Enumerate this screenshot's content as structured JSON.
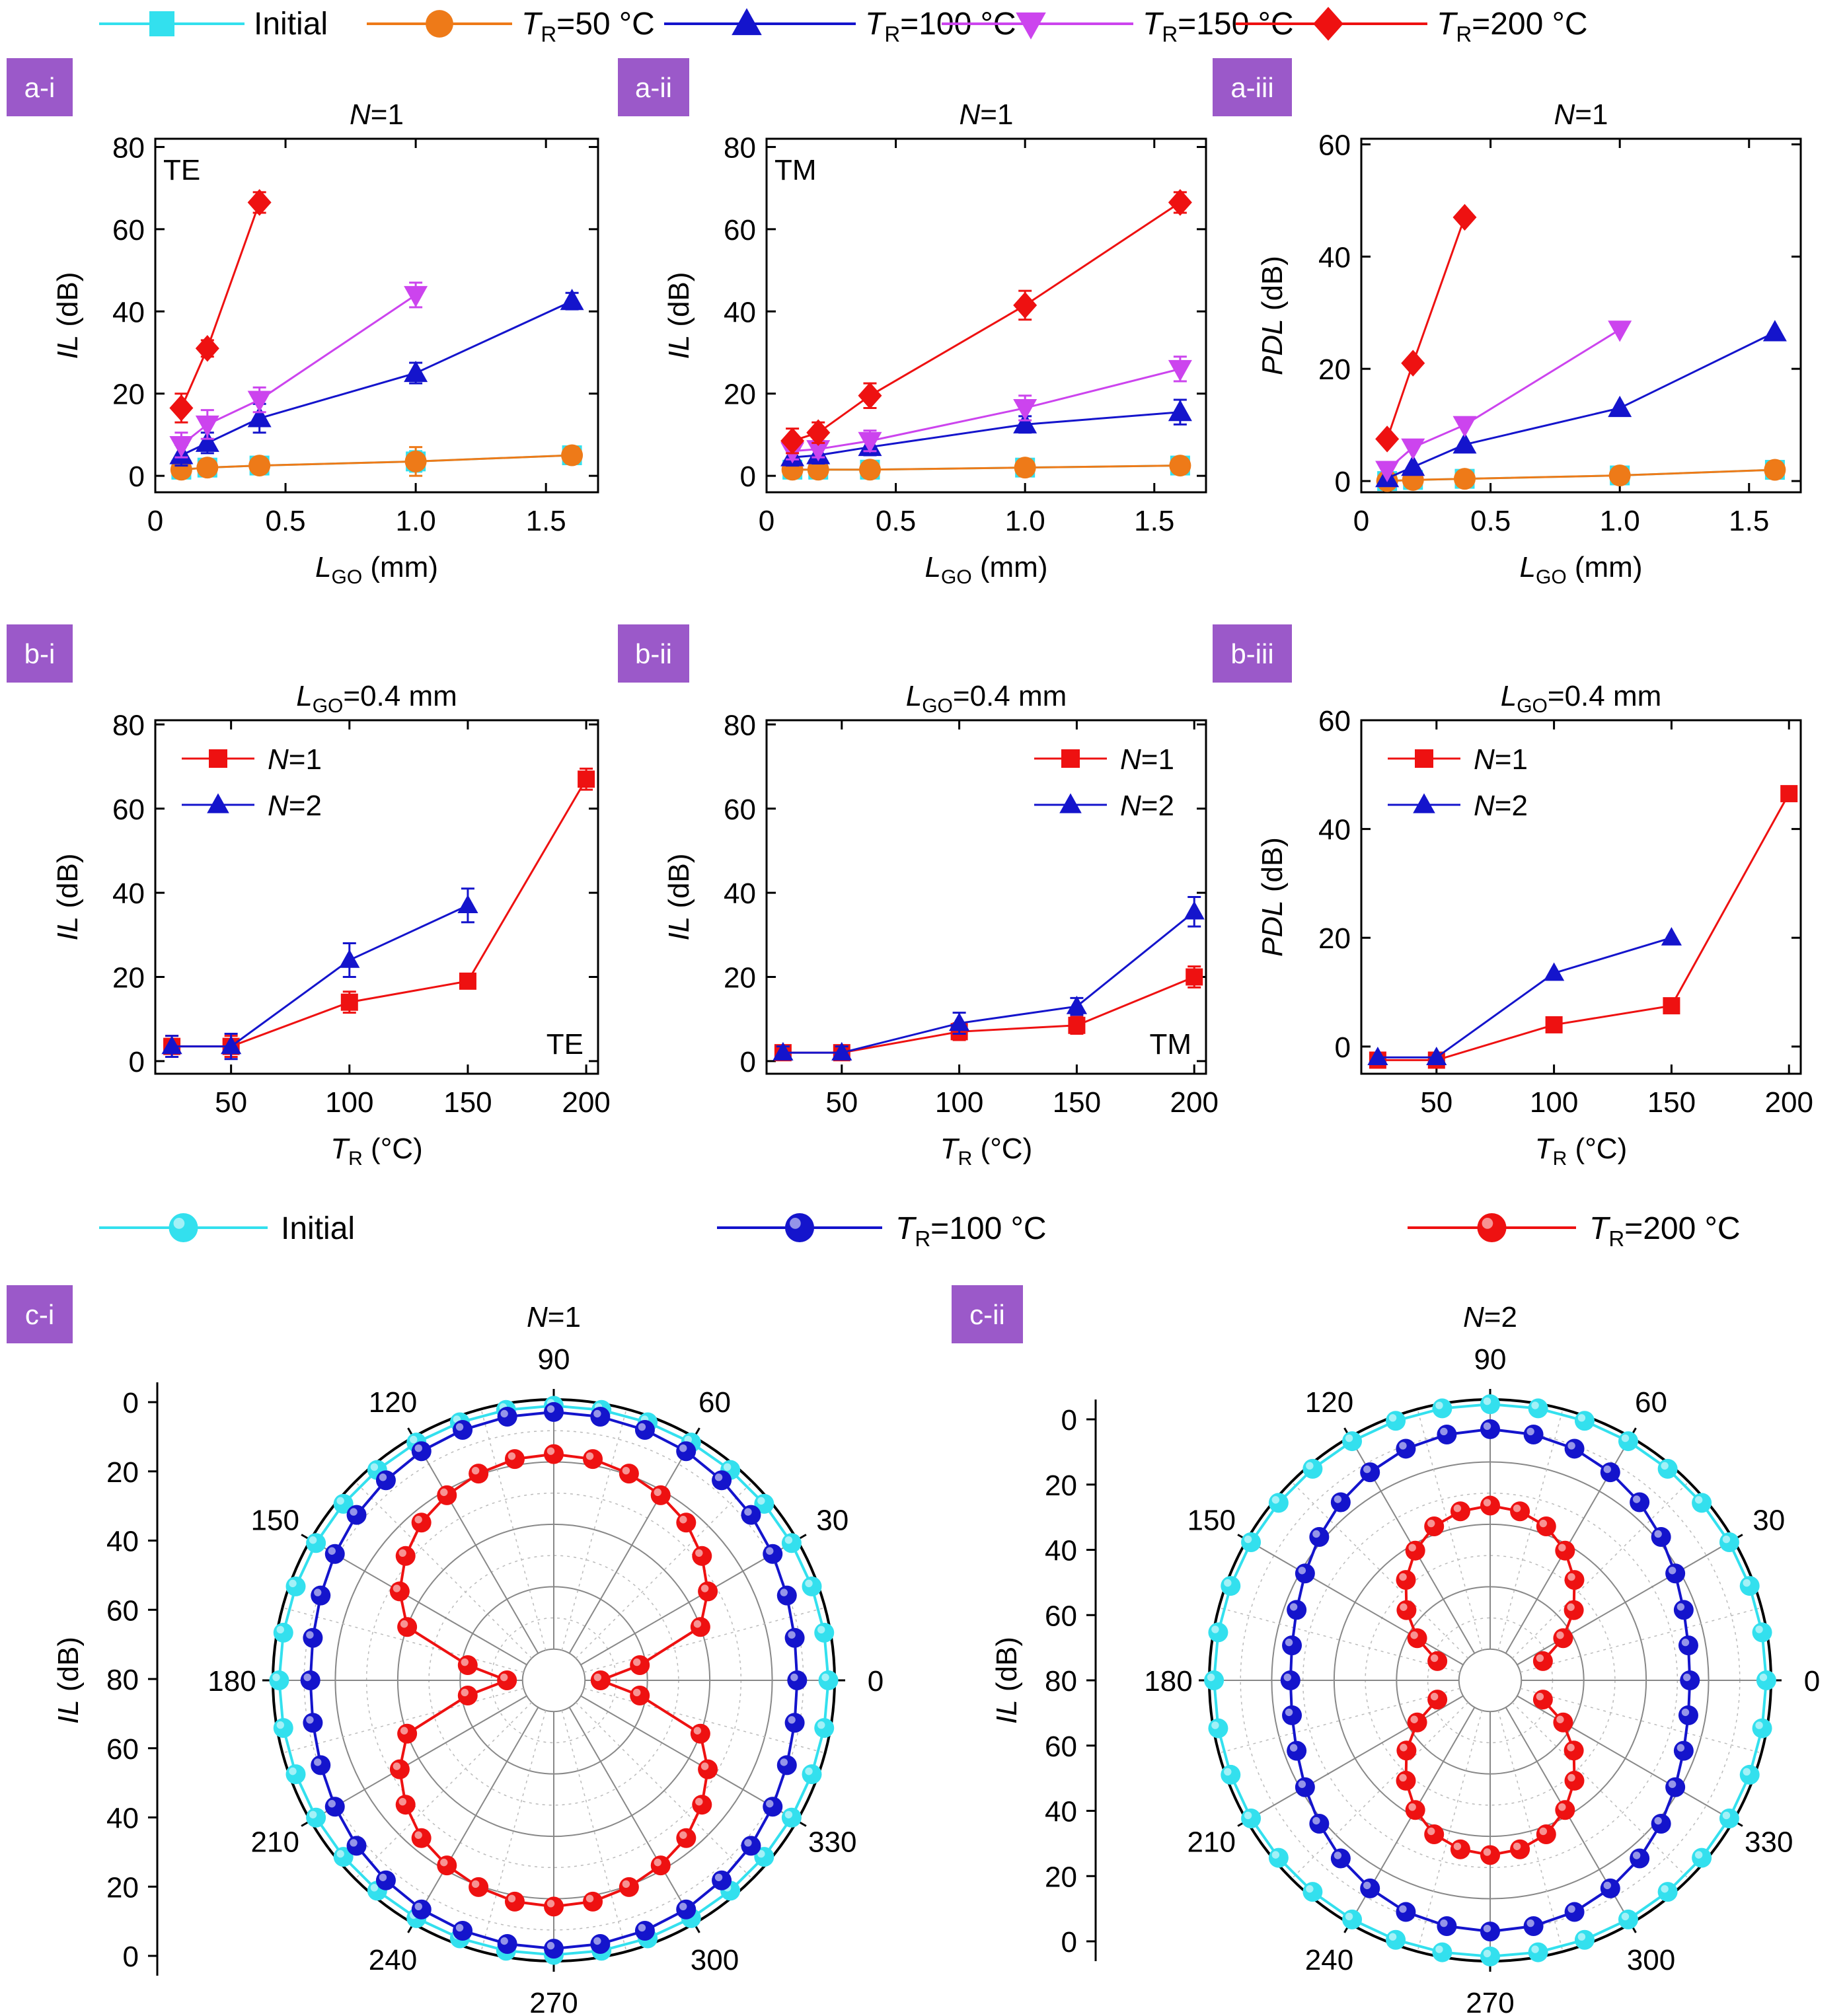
{
  "legend_top": [
    {
      "label": "Initial",
      "pre": "",
      "sub": "",
      "color": "#33e0ee",
      "marker": "square"
    },
    {
      "label": "=50 °C",
      "pre": "T",
      "sub": "R",
      "color": "#ee7a18",
      "marker": "circle"
    },
    {
      "label": "=100 °C",
      "pre": "T",
      "sub": "R",
      "color": "#1414cc",
      "marker": "triangle-up"
    },
    {
      "label": "=150 °C",
      "pre": "T",
      "sub": "R",
      "color": "#cc44ee",
      "marker": "triangle-down"
    },
    {
      "label": "=200 °C",
      "pre": "T",
      "sub": "R",
      "color": "#ee1111",
      "marker": "diamond"
    }
  ],
  "legend_bottom": [
    {
      "label": "Initial",
      "pre": "",
      "sub": "",
      "color": "#33e0ee"
    },
    {
      "label": "=100 °C",
      "pre": "T",
      "sub": "R",
      "color": "#1414cc"
    },
    {
      "label": "=200 °C",
      "pre": "T",
      "sub": "R",
      "color": "#ee1111"
    }
  ],
  "panel_tags": {
    "a_i": "a-i",
    "a_ii": "a-ii",
    "a_iii": "a-iii",
    "b_i": "b-i",
    "b_ii": "b-ii",
    "b_iii": "b-iii",
    "c_i": "c-i",
    "c_ii": "c-ii"
  },
  "chart_data": [
    {
      "id": "a_i",
      "type": "line",
      "title": {
        "pre": "N",
        "sub": "",
        "post": "=1"
      },
      "inner_label": "TE",
      "xlabel": {
        "pre": "L",
        "sub": "GO",
        "post": " (mm)"
      },
      "ylabel": {
        "pre": "IL",
        "post": " (dB)"
      },
      "xlim": [
        0,
        1.7
      ],
      "ylim": [
        -4,
        82
      ],
      "xticks": [
        0,
        0.5,
        1.0,
        1.5
      ],
      "xtick_labels": [
        "0",
        "0.5",
        "1.0",
        "1.5"
      ],
      "yticks": [
        0,
        20,
        40,
        60,
        80
      ],
      "ytick_labels": [
        "0",
        "20",
        "40",
        "60",
        "80"
      ],
      "series": [
        {
          "ref": 0,
          "x": [
            0.1,
            0.2,
            0.4,
            1.0,
            1.6
          ],
          "y": [
            1.5,
            2.0,
            2.5,
            3.5,
            5.0
          ],
          "err": [
            1.5,
            1.5,
            1.5,
            2.5,
            2.0
          ]
        },
        {
          "ref": 1,
          "x": [
            0.1,
            0.2,
            0.4,
            1.0,
            1.6
          ],
          "y": [
            1.5,
            2.0,
            2.5,
            3.5,
            5.0
          ],
          "err": [
            1.5,
            1.5,
            1.5,
            3.5,
            2.0
          ]
        },
        {
          "ref": 2,
          "x": [
            0.1,
            0.2,
            0.4,
            1.0,
            1.6
          ],
          "y": [
            5.0,
            8.0,
            14.0,
            25.0,
            42.5
          ],
          "err": [
            2.5,
            2.5,
            3.5,
            2.5,
            2.0
          ]
        },
        {
          "ref": 3,
          "x": [
            0.1,
            0.2,
            0.4,
            1.0
          ],
          "y": [
            7.5,
            12.5,
            18.5,
            44.0
          ],
          "err": [
            3.0,
            3.5,
            3.0,
            3.0
          ]
        },
        {
          "ref": 4,
          "x": [
            0.1,
            0.2,
            0.4
          ],
          "y": [
            16.5,
            31.0,
            66.5
          ],
          "err": [
            3.5,
            2.0,
            2.5
          ]
        }
      ]
    },
    {
      "id": "a_ii",
      "type": "line",
      "title": {
        "pre": "N",
        "sub": "",
        "post": "=1"
      },
      "inner_label": "TM",
      "xlabel": {
        "pre": "L",
        "sub": "GO",
        "post": " (mm)"
      },
      "ylabel": {
        "pre": "IL",
        "post": " (dB)"
      },
      "xlim": [
        0,
        1.7
      ],
      "ylim": [
        -4,
        82
      ],
      "xticks": [
        0,
        0.5,
        1.0,
        1.5
      ],
      "xtick_labels": [
        "0",
        "0.5",
        "1.0",
        "1.5"
      ],
      "yticks": [
        0,
        20,
        40,
        60,
        80
      ],
      "ytick_labels": [
        "0",
        "20",
        "40",
        "60",
        "80"
      ],
      "series": [
        {
          "ref": 0,
          "x": [
            0.1,
            0.2,
            0.4,
            1.0,
            1.6
          ],
          "y": [
            1.5,
            1.5,
            1.5,
            2.0,
            2.5
          ],
          "err": [
            1.0,
            1.0,
            1.0,
            1.5,
            1.5
          ]
        },
        {
          "ref": 1,
          "x": [
            0.1,
            0.2,
            0.4,
            1.0,
            1.6
          ],
          "y": [
            1.5,
            1.5,
            1.5,
            2.0,
            2.5
          ],
          "err": [
            1.5,
            1.5,
            1.5,
            2.0,
            1.5
          ]
        },
        {
          "ref": 2,
          "x": [
            0.1,
            0.2,
            0.4,
            1.0,
            1.6
          ],
          "y": [
            4.5,
            5.0,
            7.0,
            12.5,
            15.5
          ],
          "err": [
            2.0,
            2.0,
            2.0,
            2.0,
            3.0
          ]
        },
        {
          "ref": 3,
          "x": [
            0.1,
            0.2,
            0.4,
            1.0,
            1.6
          ],
          "y": [
            6.0,
            6.5,
            8.5,
            16.5,
            26.0
          ],
          "err": [
            2.0,
            2.0,
            2.5,
            3.0,
            3.0
          ]
        },
        {
          "ref": 4,
          "x": [
            0.1,
            0.2,
            0.4,
            1.0,
            1.6
          ],
          "y": [
            8.5,
            10.5,
            19.5,
            41.5,
            66.5
          ],
          "err": [
            3.0,
            2.5,
            3.0,
            3.5,
            2.5
          ]
        }
      ]
    },
    {
      "id": "a_iii",
      "type": "line",
      "title": {
        "pre": "N",
        "sub": "",
        "post": "=1"
      },
      "inner_label": "",
      "xlabel": {
        "pre": "L",
        "sub": "GO",
        "post": " (mm)"
      },
      "ylabel": {
        "pre": "PDL",
        "post": " (dB)"
      },
      "xlim": [
        0,
        1.7
      ],
      "ylim": [
        -2,
        61
      ],
      "xticks": [
        0,
        0.5,
        1.0,
        1.5
      ],
      "xtick_labels": [
        "0",
        "0.5",
        "1.0",
        "1.5"
      ],
      "yticks": [
        0,
        20,
        40,
        60
      ],
      "ytick_labels": [
        "0",
        "20",
        "40",
        "60"
      ],
      "series": [
        {
          "ref": 0,
          "x": [
            0.1,
            0.2,
            0.4,
            1.0,
            1.6
          ],
          "y": [
            0.0,
            0.2,
            0.4,
            1.0,
            2.0
          ],
          "err": [
            0,
            0,
            0,
            0,
            0
          ]
        },
        {
          "ref": 1,
          "x": [
            0.1,
            0.2,
            0.4,
            1.0,
            1.6
          ],
          "y": [
            0.0,
            0.2,
            0.4,
            1.0,
            2.0
          ],
          "err": [
            0,
            0,
            0,
            0,
            0
          ]
        },
        {
          "ref": 2,
          "x": [
            0.1,
            0.2,
            0.4,
            1.0,
            1.6
          ],
          "y": [
            0.5,
            2.5,
            6.5,
            13.0,
            26.5
          ],
          "err": [
            0,
            0,
            0,
            0,
            0
          ]
        },
        {
          "ref": 3,
          "x": [
            0.1,
            0.2,
            0.4,
            1.0
          ],
          "y": [
            2.0,
            6.0,
            10.0,
            27.0
          ],
          "err": [
            0,
            0,
            0,
            0
          ]
        },
        {
          "ref": 4,
          "x": [
            0.1,
            0.2,
            0.4
          ],
          "y": [
            7.5,
            21.0,
            47.0
          ],
          "err": [
            0,
            0,
            0
          ]
        }
      ]
    },
    {
      "id": "b_i",
      "type": "line",
      "title": {
        "pre": "L",
        "sub": "GO",
        "post": "=0.4 mm"
      },
      "inner_label": "TE",
      "xlabel": {
        "pre": "T",
        "sub": "R",
        "post": " (°C)"
      },
      "ylabel": {
        "pre": "IL",
        "post": " (dB)"
      },
      "xlim": [
        18,
        205
      ],
      "ylim": [
        -3,
        81
      ],
      "xticks": [
        50,
        100,
        150,
        200
      ],
      "xtick_labels": [
        "50",
        "100",
        "150",
        "200"
      ],
      "yticks": [
        0,
        20,
        40,
        60,
        80
      ],
      "ytick_labels": [
        "0",
        "20",
        "40",
        "60",
        "80"
      ],
      "legend": "top-left",
      "series": [
        {
          "pre": "N",
          "post": "=1",
          "color": "#ee1111",
          "marker": "square",
          "x": [
            25,
            50,
            100,
            150,
            200
          ],
          "y": [
            3.5,
            3.5,
            14.0,
            19.0,
            67.0
          ],
          "err": [
            2.5,
            2.5,
            2.5,
            1.0,
            2.5
          ]
        },
        {
          "pre": "N",
          "post": "=2",
          "color": "#1414cc",
          "marker": "triangle-up",
          "x": [
            25,
            50,
            100,
            150
          ],
          "y": [
            3.5,
            3.5,
            24.0,
            37.0
          ],
          "err": [
            2.5,
            3.0,
            4.0,
            4.0
          ]
        }
      ]
    },
    {
      "id": "b_ii",
      "type": "line",
      "title": {
        "pre": "L",
        "sub": "GO",
        "post": "=0.4 mm"
      },
      "inner_label": "TM",
      "xlabel": {
        "pre": "T",
        "sub": "R",
        "post": " (°C)"
      },
      "ylabel": {
        "pre": "IL",
        "post": " (dB)"
      },
      "xlim": [
        18,
        205
      ],
      "ylim": [
        -3,
        81
      ],
      "xticks": [
        50,
        100,
        150,
        200
      ],
      "xtick_labels": [
        "50",
        "100",
        "150",
        "200"
      ],
      "yticks": [
        0,
        20,
        40,
        60,
        80
      ],
      "ytick_labels": [
        "0",
        "20",
        "40",
        "60",
        "80"
      ],
      "legend": "top-right",
      "series": [
        {
          "pre": "N",
          "post": "=1",
          "color": "#ee1111",
          "marker": "square",
          "x": [
            25,
            50,
            100,
            150,
            200
          ],
          "y": [
            2.0,
            2.0,
            7.0,
            8.5,
            20.0
          ],
          "err": [
            1.5,
            1.5,
            2.0,
            2.0,
            2.5
          ]
        },
        {
          "pre": "N",
          "post": "=2",
          "color": "#1414cc",
          "marker": "triangle-up",
          "x": [
            25,
            50,
            100,
            150,
            200
          ],
          "y": [
            2.0,
            2.0,
            9.0,
            13.0,
            35.5
          ],
          "err": [
            1.5,
            1.5,
            2.5,
            2.0,
            3.5
          ]
        }
      ]
    },
    {
      "id": "b_iii",
      "type": "line",
      "title": {
        "pre": "L",
        "sub": "GO",
        "post": "=0.4 mm"
      },
      "inner_label": "",
      "xlabel": {
        "pre": "T",
        "sub": "R",
        "post": " (°C)"
      },
      "ylabel": {
        "pre": "PDL",
        "post": " (dB)"
      },
      "xlim": [
        18,
        205
      ],
      "ylim": [
        -5,
        60
      ],
      "xticks": [
        50,
        100,
        150,
        200
      ],
      "xtick_labels": [
        "50",
        "100",
        "150",
        "200"
      ],
      "yticks": [
        0,
        20,
        40,
        60
      ],
      "ytick_labels": [
        "0",
        "20",
        "40",
        "60"
      ],
      "legend": "top-left",
      "series": [
        {
          "pre": "N",
          "post": "=1",
          "color": "#ee1111",
          "marker": "square",
          "x": [
            25,
            50,
            100,
            150,
            200
          ],
          "y": [
            -2.5,
            -2.5,
            4.0,
            7.5,
            46.5
          ],
          "err": [
            0,
            0,
            0,
            0,
            0
          ]
        },
        {
          "pre": "N",
          "post": "=2",
          "color": "#1414cc",
          "marker": "triangle-up",
          "x": [
            25,
            50,
            100,
            150
          ],
          "y": [
            -2.0,
            -2.0,
            13.5,
            20.0
          ],
          "err": [
            0,
            0,
            0,
            0
          ]
        }
      ]
    },
    {
      "id": "c_i",
      "type": "polar",
      "title": {
        "pre": "N",
        "sub": "",
        "post": "=1"
      },
      "ylabel": {
        "pre": "IL",
        "post": " (dB)"
      },
      "radial_ticks": [
        "0",
        "20",
        "40",
        "60",
        "80",
        "60",
        "40",
        "20",
        "0"
      ],
      "angle_labels": [
        "0",
        "30",
        "60",
        "90",
        "120",
        "150",
        "180",
        "210",
        "240",
        "270",
        "300",
        "330"
      ],
      "theta_step_deg": 10,
      "series": [
        {
          "name_ref": 0,
          "il": [
            2.0,
            2.0,
            2.0,
            2.0,
            2.0,
            2.0,
            2.0,
            2.0,
            2.0,
            2.0,
            2.0,
            2.0,
            2.0,
            2.0,
            2.0,
            2.0,
            2.0,
            2.0,
            2.0,
            2.0,
            2.0,
            2.0,
            2.0,
            2.0,
            2.0,
            2.0,
            2.0,
            2.0,
            2.0,
            2.0,
            2.0,
            2.0,
            2.0,
            2.0,
            2.0,
            2.0
          ]
        },
        {
          "name_ref": 1,
          "il": [
            12.0,
            11.6,
            10.5,
            9.0,
            7.5,
            6.3,
            5.2,
            4.6,
            4.2,
            4.0,
            4.2,
            4.6,
            5.2,
            6.3,
            7.5,
            9.0,
            10.5,
            11.6,
            12.0,
            11.6,
            10.5,
            9.0,
            7.5,
            6.3,
            5.2,
            4.6,
            4.2,
            4.0,
            4.2,
            4.6,
            5.2,
            6.3,
            7.5,
            9.0,
            10.5,
            11.6
          ]
        },
        {
          "name_ref": 2,
          "il": [
            75.0,
            62.0,
            40.0,
            33.0,
            28.0,
            24.0,
            21.5,
            19.5,
            18.0,
            17.5,
            18.0,
            19.5,
            21.5,
            24.0,
            28.0,
            33.0,
            40.0,
            62.0,
            75.0,
            62.0,
            40.0,
            33.0,
            28.0,
            24.0,
            21.5,
            19.5,
            18.0,
            17.5,
            18.0,
            19.5,
            21.5,
            24.0,
            28.0,
            33.0,
            40.0,
            62.0
          ]
        }
      ]
    },
    {
      "id": "c_ii",
      "type": "polar",
      "title": {
        "pre": "N",
        "sub": "",
        "post": "=2"
      },
      "ylabel": {
        "pre": "IL",
        "post": " (dB)"
      },
      "radial_ticks": [
        "0",
        "20",
        "40",
        "60",
        "80",
        "60",
        "40",
        "20",
        "0"
      ],
      "angle_labels": [
        "0",
        "30",
        "60",
        "90",
        "120",
        "150",
        "180",
        "210",
        "240",
        "270",
        "300",
        "330"
      ],
      "theta_step_deg": 10,
      "series": [
        {
          "name_ref": 0,
          "il": [
            1.5,
            1.5,
            1.5,
            1.5,
            1.5,
            1.5,
            1.5,
            1.5,
            1.5,
            1.5,
            1.5,
            1.5,
            1.5,
            1.5,
            1.5,
            1.5,
            1.5,
            1.5,
            1.5,
            1.5,
            1.5,
            1.5,
            1.5,
            1.5,
            1.5,
            1.5,
            1.5,
            1.5,
            1.5,
            1.5,
            1.5,
            1.5,
            1.5,
            1.5,
            1.5,
            1.5
          ]
        },
        {
          "name_ref": 1,
          "il": [
            26.0,
            25.5,
            24.0,
            21.5,
            18.5,
            15.5,
            13.0,
            11.0,
            10.0,
            9.5,
            10.0,
            11.0,
            13.0,
            15.5,
            18.5,
            21.5,
            24.0,
            25.5,
            26.0,
            25.5,
            24.0,
            21.5,
            18.5,
            15.5,
            13.0,
            11.0,
            10.0,
            9.5,
            10.0,
            11.0,
            13.0,
            15.5,
            18.5,
            21.5,
            24.0,
            25.5
          ]
        },
        {
          "name_ref": 2,
          "il": [
            null,
            null,
            72.0,
            63.0,
            55.0,
            48.0,
            42.0,
            37.5,
            35.0,
            34.0,
            35.0,
            37.5,
            42.0,
            48.0,
            55.0,
            63.0,
            72.0,
            null,
            null,
            null,
            72.0,
            63.0,
            55.0,
            48.0,
            42.0,
            37.5,
            35.0,
            34.0,
            35.0,
            37.5,
            42.0,
            48.0,
            55.0,
            63.0,
            72.0,
            null
          ]
        }
      ]
    }
  ]
}
